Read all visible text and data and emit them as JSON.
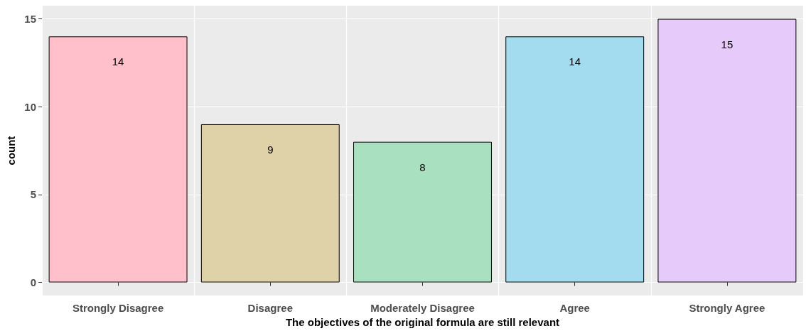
{
  "chart_data": {
    "type": "bar",
    "xlabel": "The objectives of the original formula are still relevant",
    "ylabel": "count",
    "categories": [
      "Strongly Disagree",
      "Disagree",
      "Moderately Disagree",
      "Agree",
      "Strongly Agree"
    ],
    "values": [
      14,
      9,
      8,
      14,
      15
    ],
    "colors": [
      "#ffc0cb",
      "#e0d2a8",
      "#a8e0c0",
      "#a3dcef",
      "#e5cafa"
    ],
    "ylim": [
      -0.75,
      15.75
    ],
    "yticks": [
      0,
      5,
      10,
      15
    ],
    "grid": true,
    "data_labels": true
  }
}
